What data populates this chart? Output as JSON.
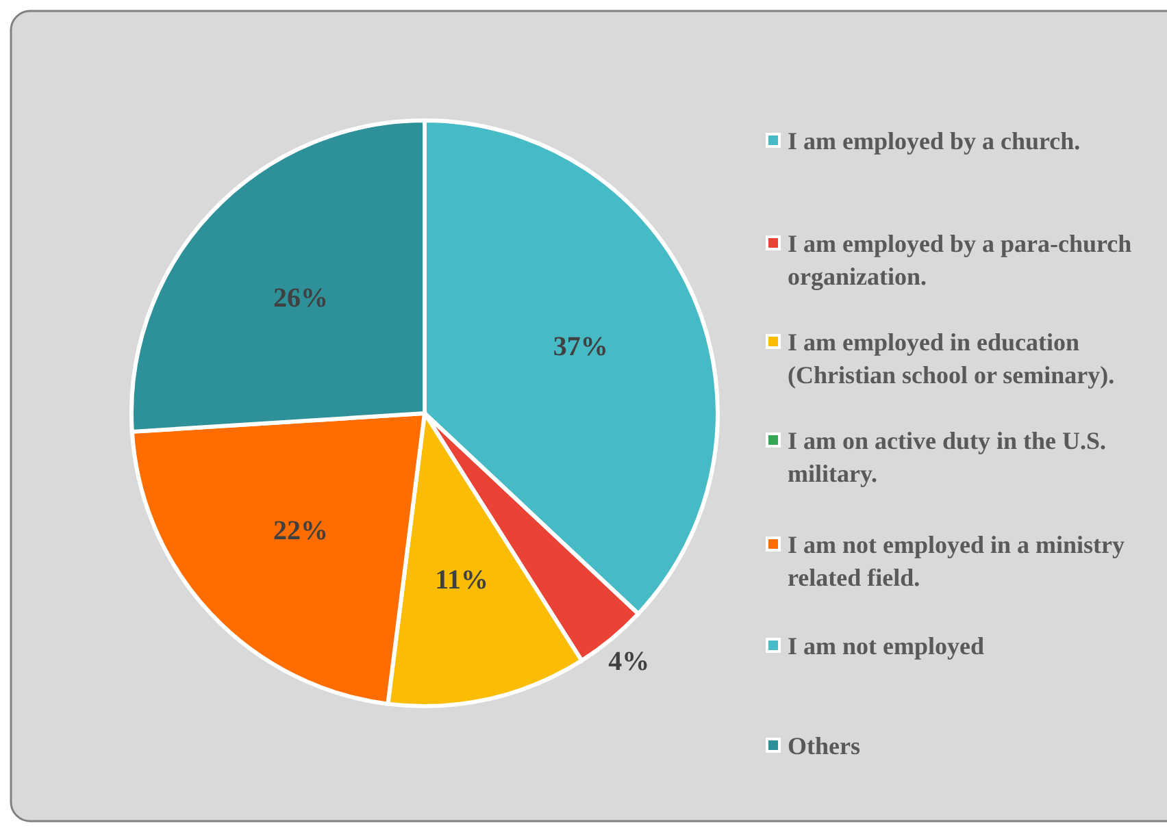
{
  "chart_data": {
    "type": "pie",
    "categories": [
      "I am employed by a church.",
      "I am employed by a para-church organization.",
      "I am employed in education (Christian school or seminary).",
      "I am on active duty in the U.S. military.",
      "I am not employed in a ministry related field.",
      "I am not employed",
      "Others"
    ],
    "values": [
      37,
      4,
      11,
      0,
      22,
      0,
      26
    ],
    "colors": [
      "#46bbc5",
      "#ea4335",
      "#fbbc04",
      "#34a853",
      "#ff6d01",
      "#46bdc6",
      "#2e9099"
    ],
    "value_labels": [
      "37%",
      "4%",
      "11%",
      null,
      "22%",
      null,
      "26%"
    ],
    "legend": "right"
  }
}
